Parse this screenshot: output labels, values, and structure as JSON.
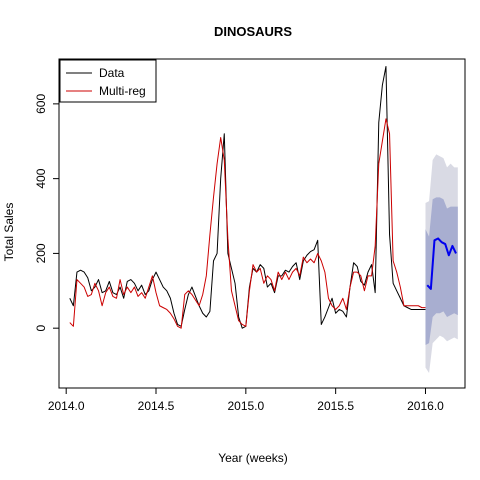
{
  "chart_data": {
    "type": "line",
    "title": "DINOSAURS",
    "xlabel": "Year (weeks)",
    "ylabel": "Total Sales",
    "xlim": [
      2013.96,
      2016.22
    ],
    "ylim": [
      -160,
      720
    ],
    "xticks": [
      2014.0,
      2014.5,
      2015.0,
      2015.5,
      2016.0
    ],
    "xtick_labels": [
      "2014.0",
      "2014.5",
      "2015.0",
      "2015.5",
      "2016.0"
    ],
    "yticks": [
      0,
      200,
      400,
      600
    ],
    "ytick_labels": [
      "0",
      "200",
      "400",
      "600"
    ],
    "grid": false,
    "legend": {
      "position": "top-left",
      "entries": [
        {
          "label": "Data",
          "color": "#000000"
        },
        {
          "label": "Multi-reg",
          "color": "#cc0000"
        }
      ]
    },
    "series": [
      {
        "name": "Data",
        "color": "#000000",
        "x": [
          2014.02,
          2014.04,
          2014.06,
          2014.08,
          2014.1,
          2014.12,
          2014.14,
          2014.16,
          2014.18,
          2014.2,
          2014.22,
          2014.24,
          2014.26,
          2014.28,
          2014.3,
          2014.32,
          2014.34,
          2014.36,
          2014.38,
          2014.4,
          2014.42,
          2014.44,
          2014.46,
          2014.48,
          2014.5,
          2014.52,
          2014.54,
          2014.56,
          2014.58,
          2014.6,
          2014.62,
          2014.64,
          2014.66,
          2014.68,
          2014.7,
          2014.72,
          2014.74,
          2014.76,
          2014.78,
          2014.8,
          2014.82,
          2014.84,
          2014.86,
          2014.88,
          2014.9,
          2014.92,
          2014.94,
          2014.96,
          2014.98,
          2015.0,
          2015.02,
          2015.04,
          2015.06,
          2015.08,
          2015.1,
          2015.12,
          2015.14,
          2015.16,
          2015.18,
          2015.2,
          2015.22,
          2015.24,
          2015.26,
          2015.28,
          2015.3,
          2015.32,
          2015.34,
          2015.36,
          2015.38,
          2015.4,
          2015.42,
          2015.44,
          2015.46,
          2015.48,
          2015.5,
          2015.52,
          2015.54,
          2015.56,
          2015.58,
          2015.6,
          2015.62,
          2015.64,
          2015.66,
          2015.68,
          2015.7,
          2015.72,
          2015.74,
          2015.76,
          2015.78,
          2015.8,
          2015.82,
          2015.84,
          2015.86,
          2015.88,
          2015.9,
          2015.92,
          2015.94,
          2015.96,
          2015.98,
          2016.0
        ],
        "y": [
          80,
          60,
          150,
          155,
          150,
          135,
          100,
          110,
          130,
          95,
          100,
          125,
          95,
          90,
          110,
          80,
          125,
          130,
          120,
          100,
          115,
          90,
          100,
          130,
          150,
          130,
          110,
          100,
          80,
          40,
          10,
          5,
          50,
          90,
          110,
          85,
          60,
          40,
          30,
          45,
          180,
          200,
          400,
          520,
          200,
          160,
          120,
          30,
          0,
          5,
          110,
          160,
          150,
          170,
          160,
          110,
          120,
          95,
          140,
          140,
          155,
          150,
          165,
          175,
          130,
          180,
          195,
          205,
          210,
          235,
          10,
          30,
          55,
          80,
          40,
          50,
          45,
          30,
          110,
          175,
          165,
          125,
          115,
          150,
          170,
          95,
          550,
          650,
          700,
          250,
          120,
          100,
          80,
          60,
          55,
          50,
          50,
          50,
          50,
          50
        ]
      },
      {
        "name": "Multi-reg",
        "color": "#cc0000",
        "x": [
          2014.02,
          2014.04,
          2014.06,
          2014.08,
          2014.1,
          2014.12,
          2014.14,
          2014.16,
          2014.18,
          2014.2,
          2014.22,
          2014.24,
          2014.26,
          2014.28,
          2014.3,
          2014.32,
          2014.34,
          2014.36,
          2014.38,
          2014.4,
          2014.42,
          2014.44,
          2014.46,
          2014.48,
          2014.5,
          2014.52,
          2014.54,
          2014.56,
          2014.58,
          2014.6,
          2014.62,
          2014.64,
          2014.66,
          2014.68,
          2014.7,
          2014.72,
          2014.74,
          2014.76,
          2014.78,
          2014.8,
          2014.82,
          2014.84,
          2014.86,
          2014.88,
          2014.9,
          2014.92,
          2014.94,
          2014.96,
          2014.98,
          2015.0,
          2015.02,
          2015.04,
          2015.06,
          2015.08,
          2015.1,
          2015.12,
          2015.14,
          2015.16,
          2015.18,
          2015.2,
          2015.22,
          2015.24,
          2015.26,
          2015.28,
          2015.3,
          2015.32,
          2015.34,
          2015.36,
          2015.38,
          2015.4,
          2015.42,
          2015.44,
          2015.46,
          2015.48,
          2015.5,
          2015.52,
          2015.54,
          2015.56,
          2015.58,
          2015.6,
          2015.62,
          2015.64,
          2015.66,
          2015.68,
          2015.7,
          2015.72,
          2015.74,
          2015.76,
          2015.78,
          2015.8,
          2015.82,
          2015.84,
          2015.86,
          2015.88,
          2015.9,
          2015.92,
          2015.94,
          2015.96,
          2015.98,
          2016.0
        ],
        "y": [
          15,
          5,
          130,
          120,
          110,
          85,
          90,
          120,
          100,
          60,
          95,
          110,
          85,
          80,
          130,
          90,
          110,
          95,
          110,
          85,
          95,
          80,
          110,
          140,
          95,
          60,
          55,
          50,
          40,
          25,
          5,
          0,
          90,
          100,
          90,
          75,
          60,
          90,
          140,
          250,
          350,
          440,
          510,
          450,
          240,
          100,
          60,
          20,
          10,
          5,
          100,
          170,
          150,
          160,
          120,
          140,
          130,
          100,
          150,
          130,
          150,
          130,
          150,
          160,
          140,
          190,
          175,
          185,
          175,
          200,
          180,
          150,
          80,
          60,
          50,
          60,
          80,
          50,
          110,
          150,
          150,
          140,
          100,
          140,
          140,
          220,
          440,
          500,
          560,
          520,
          180,
          150,
          110,
          60,
          60,
          60,
          60,
          60,
          55,
          55
        ]
      },
      {
        "name": "",
        "color": "#0000ee",
        "x": [
          2016.01,
          2016.03,
          2016.05,
          2016.07,
          2016.09,
          2016.11,
          2016.13,
          2016.15,
          2016.17
        ],
        "y": [
          115,
          105,
          235,
          240,
          230,
          225,
          195,
          220,
          200
        ]
      }
    ],
    "forecast_bands": [
      {
        "level": "outer",
        "color": "#d9dae4",
        "x": [
          2016.0,
          2016.02,
          2016.04,
          2016.06,
          2016.08,
          2016.1,
          2016.12,
          2016.14,
          2016.16,
          2016.18
        ],
        "lower": [
          -105,
          -120,
          -40,
          -30,
          -20,
          -25,
          -35,
          -30,
          -25,
          -30
        ],
        "upper": [
          335,
          340,
          450,
          465,
          460,
          455,
          430,
          440,
          430,
          430
        ]
      },
      {
        "level": "inner",
        "color": "#a8aed0",
        "x": [
          2016.0,
          2016.02,
          2016.04,
          2016.06,
          2016.08,
          2016.1,
          2016.12,
          2016.14,
          2016.16,
          2016.18
        ],
        "lower": [
          -45,
          -40,
          30,
          40,
          40,
          45,
          30,
          35,
          40,
          35
        ],
        "upper": [
          265,
          245,
          345,
          350,
          350,
          345,
          320,
          325,
          325,
          325
        ]
      }
    ]
  }
}
